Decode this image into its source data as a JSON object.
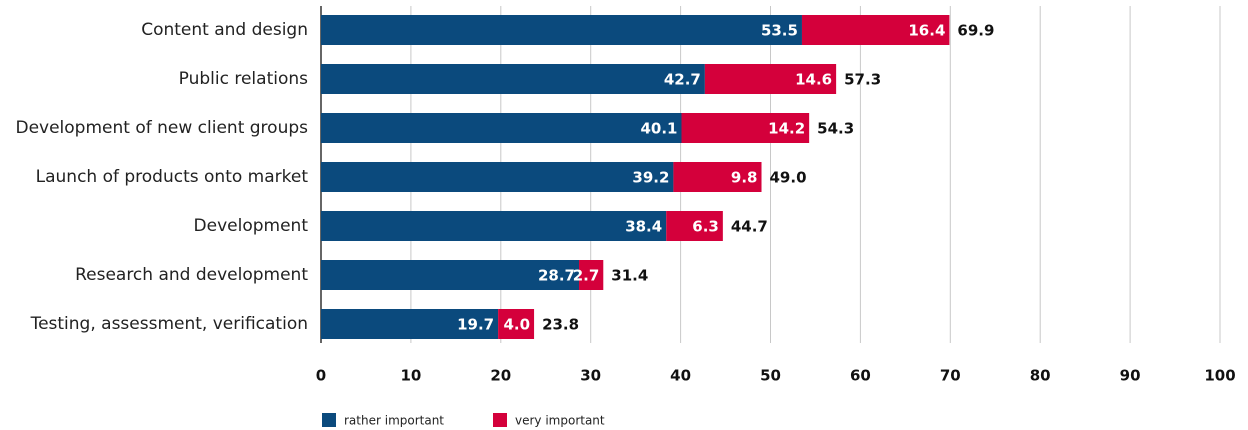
{
  "chart_data": {
    "type": "stacked-barh",
    "categories": [
      "Content and design",
      "Public relations",
      "Development of new client groups",
      "Launch of products onto market",
      "Development",
      "Research and development",
      "Testing, assessment, verification"
    ],
    "series": [
      {
        "name": "rather important",
        "color": "#0b4a7d",
        "values": [
          53.5,
          42.7,
          40.1,
          39.2,
          38.4,
          28.7,
          19.7
        ],
        "value_labels": [
          "53.5",
          "42.7",
          "40.1",
          "39.2",
          "38.4",
          "28.7",
          "19.7"
        ]
      },
      {
        "name": "very important",
        "color": "#d4003b",
        "values": [
          16.4,
          14.6,
          14.2,
          9.8,
          6.3,
          2.7,
          4.0
        ],
        "value_labels": [
          "16.4",
          "14.6",
          "14.2",
          "9.8",
          "6.3",
          "2.7",
          "4.0"
        ]
      }
    ],
    "total_labels": [
      "69.9",
      "57.3",
      "54.3",
      "49.0",
      "44.7",
      "31.4",
      "23.8"
    ],
    "xlim": [
      0,
      100
    ],
    "xticks": [
      0,
      10,
      20,
      30,
      40,
      50,
      60,
      70,
      80,
      90,
      100
    ],
    "grid": true
  }
}
